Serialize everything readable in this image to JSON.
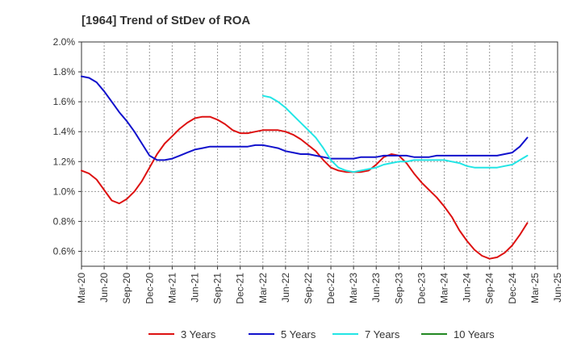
{
  "chart_data": {
    "type": "line",
    "title": "[1964]  Trend of StDev of ROA",
    "xlabel": "",
    "ylabel": "",
    "ylim": [
      0.5,
      2.0
    ],
    "y_ticks": [
      0.6,
      0.8,
      1.0,
      1.2,
      1.4,
      1.6,
      1.8,
      2.0
    ],
    "y_tick_labels": [
      "0.6%",
      "0.8%",
      "1.0%",
      "1.2%",
      "1.4%",
      "1.6%",
      "1.8%",
      "2.0%"
    ],
    "x_tick_labels": [
      "Mar-20",
      "Jun-20",
      "Sep-20",
      "Dec-20",
      "Mar-21",
      "Jun-21",
      "Sep-21",
      "Dec-21",
      "Mar-22",
      "Jun-22",
      "Sep-22",
      "Dec-22",
      "Mar-23",
      "Jun-23",
      "Sep-23",
      "Dec-23",
      "Mar-24",
      "Jun-24",
      "Sep-24",
      "Dec-24",
      "Mar-25",
      "Jun-25"
    ],
    "grid": true,
    "legend_position": "bottom",
    "series": [
      {
        "name": "3 Years",
        "color": "#dd1111",
        "values": [
          [
            0,
            1.14
          ],
          [
            1,
            1.12
          ],
          [
            2,
            1.08
          ],
          [
            3,
            1.01
          ],
          [
            4,
            0.94
          ],
          [
            5,
            0.92
          ],
          [
            6,
            0.95
          ],
          [
            7,
            1.0
          ],
          [
            8,
            1.07
          ],
          [
            9,
            1.16
          ],
          [
            10,
            1.25
          ],
          [
            11,
            1.32
          ],
          [
            12,
            1.37
          ],
          [
            13,
            1.42
          ],
          [
            14,
            1.46
          ],
          [
            15,
            1.49
          ],
          [
            16,
            1.5
          ],
          [
            17,
            1.5
          ],
          [
            18,
            1.48
          ],
          [
            19,
            1.45
          ],
          [
            20,
            1.41
          ],
          [
            21,
            1.39
          ],
          [
            22,
            1.39
          ],
          [
            23,
            1.4
          ],
          [
            24,
            1.41
          ],
          [
            25,
            1.41
          ],
          [
            26,
            1.41
          ],
          [
            27,
            1.4
          ],
          [
            28,
            1.38
          ],
          [
            29,
            1.35
          ],
          [
            30,
            1.31
          ],
          [
            31,
            1.27
          ],
          [
            32,
            1.21
          ],
          [
            33,
            1.16
          ],
          [
            34,
            1.14
          ],
          [
            35,
            1.13
          ],
          [
            36,
            1.13
          ],
          [
            37,
            1.13
          ],
          [
            38,
            1.14
          ],
          [
            39,
            1.18
          ],
          [
            40,
            1.23
          ],
          [
            41,
            1.25
          ],
          [
            42,
            1.24
          ],
          [
            43,
            1.19
          ],
          [
            44,
            1.12
          ],
          [
            45,
            1.06
          ],
          [
            46,
            1.01
          ],
          [
            47,
            0.96
          ],
          [
            48,
            0.9
          ],
          [
            49,
            0.83
          ],
          [
            50,
            0.74
          ],
          [
            51,
            0.67
          ],
          [
            52,
            0.61
          ],
          [
            53,
            0.57
          ],
          [
            54,
            0.55
          ],
          [
            55,
            0.56
          ],
          [
            56,
            0.59
          ],
          [
            57,
            0.64
          ],
          [
            58,
            0.71
          ],
          [
            59,
            0.79
          ]
        ]
      },
      {
        "name": "5 Years",
        "color": "#1111cc",
        "values": [
          [
            0,
            1.77
          ],
          [
            1,
            1.76
          ],
          [
            2,
            1.73
          ],
          [
            3,
            1.67
          ],
          [
            4,
            1.6
          ],
          [
            5,
            1.53
          ],
          [
            6,
            1.47
          ],
          [
            7,
            1.4
          ],
          [
            8,
            1.32
          ],
          [
            9,
            1.24
          ],
          [
            10,
            1.21
          ],
          [
            11,
            1.21
          ],
          [
            12,
            1.22
          ],
          [
            13,
            1.24
          ],
          [
            14,
            1.26
          ],
          [
            15,
            1.28
          ],
          [
            16,
            1.29
          ],
          [
            17,
            1.3
          ],
          [
            18,
            1.3
          ],
          [
            19,
            1.3
          ],
          [
            20,
            1.3
          ],
          [
            21,
            1.3
          ],
          [
            22,
            1.3
          ],
          [
            23,
            1.31
          ],
          [
            24,
            1.31
          ],
          [
            25,
            1.3
          ],
          [
            26,
            1.29
          ],
          [
            27,
            1.27
          ],
          [
            28,
            1.26
          ],
          [
            29,
            1.25
          ],
          [
            30,
            1.25
          ],
          [
            31,
            1.24
          ],
          [
            32,
            1.23
          ],
          [
            33,
            1.22
          ],
          [
            34,
            1.22
          ],
          [
            35,
            1.22
          ],
          [
            36,
            1.22
          ],
          [
            37,
            1.23
          ],
          [
            38,
            1.23
          ],
          [
            39,
            1.23
          ],
          [
            40,
            1.24
          ],
          [
            41,
            1.24
          ],
          [
            42,
            1.24
          ],
          [
            43,
            1.24
          ],
          [
            44,
            1.23
          ],
          [
            45,
            1.23
          ],
          [
            46,
            1.23
          ],
          [
            47,
            1.24
          ],
          [
            48,
            1.24
          ],
          [
            49,
            1.24
          ],
          [
            50,
            1.24
          ],
          [
            51,
            1.24
          ],
          [
            52,
            1.24
          ],
          [
            53,
            1.24
          ],
          [
            54,
            1.24
          ],
          [
            55,
            1.24
          ],
          [
            56,
            1.25
          ],
          [
            57,
            1.26
          ],
          [
            58,
            1.3
          ],
          [
            59,
            1.36
          ]
        ]
      },
      {
        "name": "7 Years",
        "color": "#22e5e5",
        "values": [
          [
            24,
            1.64
          ],
          [
            25,
            1.63
          ],
          [
            26,
            1.6
          ],
          [
            27,
            1.56
          ],
          [
            28,
            1.51
          ],
          [
            29,
            1.46
          ],
          [
            30,
            1.41
          ],
          [
            31,
            1.36
          ],
          [
            32,
            1.29
          ],
          [
            33,
            1.21
          ],
          [
            34,
            1.16
          ],
          [
            35,
            1.14
          ],
          [
            36,
            1.13
          ],
          [
            37,
            1.14
          ],
          [
            38,
            1.15
          ],
          [
            39,
            1.16
          ],
          [
            40,
            1.18
          ],
          [
            41,
            1.19
          ],
          [
            42,
            1.2
          ],
          [
            43,
            1.2
          ],
          [
            44,
            1.21
          ],
          [
            45,
            1.21
          ],
          [
            46,
            1.21
          ],
          [
            47,
            1.21
          ],
          [
            48,
            1.21
          ],
          [
            49,
            1.2
          ],
          [
            50,
            1.19
          ],
          [
            51,
            1.17
          ],
          [
            52,
            1.16
          ],
          [
            53,
            1.16
          ],
          [
            54,
            1.16
          ],
          [
            55,
            1.16
          ],
          [
            56,
            1.17
          ],
          [
            57,
            1.18
          ],
          [
            58,
            1.21
          ],
          [
            59,
            1.24
          ]
        ]
      },
      {
        "name": "10 Years",
        "color": "#228822",
        "values": []
      }
    ]
  }
}
